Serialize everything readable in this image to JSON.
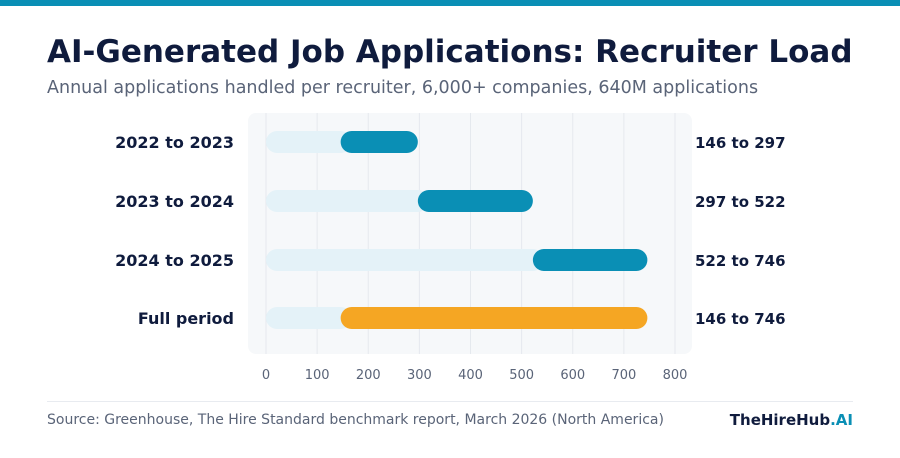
{
  "header": {
    "title": "AI-Generated Job Applications: Recruiter Load",
    "subtitle": "Annual applications handled per recruiter, 6,000+ companies, 640M applications"
  },
  "footer": {
    "source": "Source: Greenhouse, The Hire Standard benchmark report, March 2026 (North America)",
    "brand_main": "TheHireHub",
    "brand_accent": ".AI"
  },
  "colors": {
    "accent": "#0a8fb5",
    "highlight": "#f5a623",
    "track": "#e4f2f8",
    "text_dark": "#0f1b3d",
    "text_muted": "#5a6478",
    "plot_bg": "#f6f8fa",
    "grid": "#e5e9ee"
  },
  "chart_data": {
    "type": "bar",
    "title": "AI-Generated Job Applications: Recruiter Load",
    "subtitle": "Annual applications handled per recruiter, 6,000+ companies, 640M applications",
    "categories": [
      "2022 to 2023",
      "2023 to 2024",
      "2024 to 2025",
      "Full period"
    ],
    "ranges": [
      {
        "category": "2022 to 2023",
        "start": 146,
        "end": 297,
        "label": "146 to 297",
        "highlight": false
      },
      {
        "category": "2023 to 2024",
        "start": 297,
        "end": 522,
        "label": "297 to 522",
        "highlight": false
      },
      {
        "category": "2024 to 2025",
        "start": 522,
        "end": 746,
        "label": "522 to 746",
        "highlight": false
      },
      {
        "category": "Full period",
        "start": 146,
        "end": 746,
        "label": "146 to 746",
        "highlight": true
      }
    ],
    "xticks": [
      0,
      100,
      200,
      300,
      400,
      500,
      600,
      700,
      800
    ],
    "xlim": [
      0,
      800
    ],
    "xlabel": "",
    "ylabel": "",
    "grid": "vertical",
    "legend": "none"
  }
}
